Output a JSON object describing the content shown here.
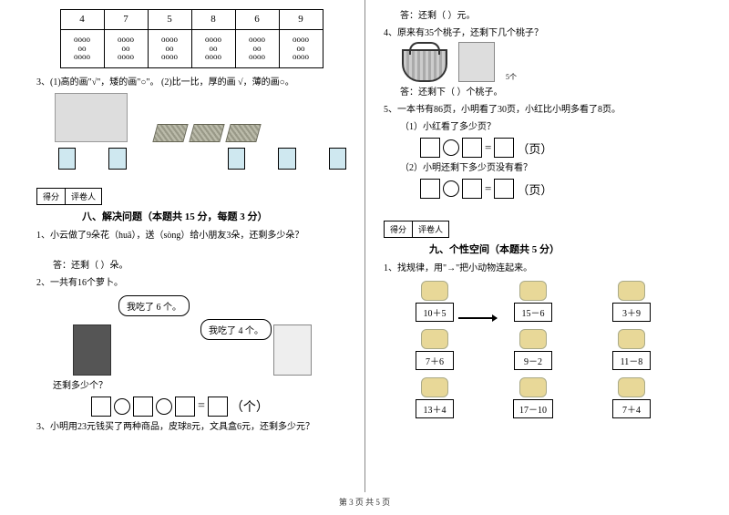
{
  "footer": "第 3 页 共 5 页",
  "left": {
    "table": {
      "headers": [
        "4",
        "7",
        "5",
        "8",
        "6",
        "9"
      ],
      "cells": [
        "oooo\noo\noooo",
        "oooo\noo\noooo",
        "oooo\noo\noooo",
        "oooo\noo\noooo",
        "oooo\noo\noooo",
        "oooo\noo\noooo"
      ]
    },
    "q3": "3、(1)高的画\"√\"，矮的画\"○\"。   (2)比一比，厚的画  √，薄的画○。",
    "scoreLabels": {
      "a": "得分",
      "b": "评卷人"
    },
    "section8": "八、解决问题（本题共 15 分，每题 3 分）",
    "s8_q1": "1、小云做了9朵花（huā），送（sòng）给小朋友3朵，还剩多少朵？",
    "s8_q1_ans": "答：还剩（   ）朵。",
    "s8_q2": "2、一共有16个萝卜。",
    "bubble1": "我吃了 6 个。",
    "bubble2": "我吃了 4 个。",
    "s8_q2_sub": "还剩多少个？",
    "eq_unit": "（个）",
    "s8_q3": "3、小明用23元钱买了两种商品，皮球8元，文具盒6元，还剩多少元？"
  },
  "right": {
    "s8_q3_ans": "答：还剩（   ）元。",
    "s8_q4": "4、原来有35个桃子，还剩下几个桃子？",
    "peach_label": "5个",
    "s8_q4_ans": "答：还剩下（   ）个桃子。",
    "s8_q5": "5、一本书有86页，小明看了30页，小红比小明多看了8页。",
    "s8_q5_1": "（1）小红看了多少页？",
    "s8_q5_2": "（2）小明还剩下多少页没有看？",
    "eq_unit_page": "（页）",
    "scoreLabels": {
      "a": "得分",
      "b": "评卷人"
    },
    "section9": "九、个性空间（本题共 5 分）",
    "s9_q1": "1、找规律，用\"→\"把小动物连起来。",
    "exprs": [
      "10＋5",
      "15－6",
      "3＋9",
      "7＋6",
      "9－2",
      "11－8",
      "13＋4",
      "17－10",
      "7＋4"
    ]
  },
  "colors": {
    "background": "#ffffff",
    "text": "#000000",
    "divider": "#888888"
  }
}
